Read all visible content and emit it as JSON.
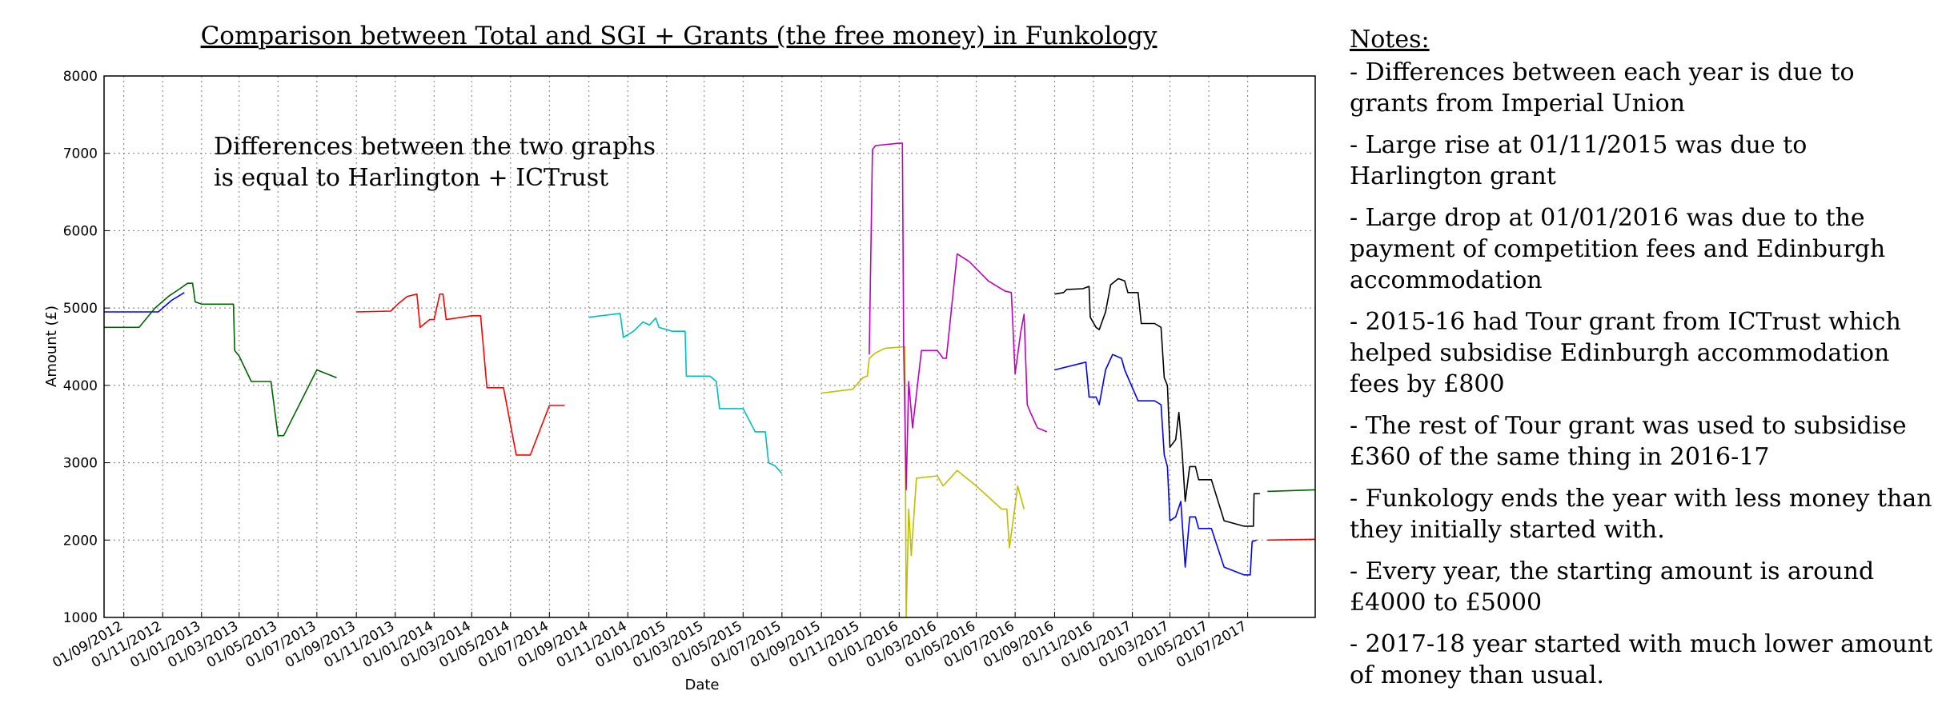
{
  "chart_data": {
    "type": "line",
    "title": "Comparison between Total and SGI + Grants (the free money) in Funkology",
    "xlabel": "Date",
    "ylabel": "Amount (£)",
    "xlim": [
      "2012-08-01",
      "2017-10-15"
    ],
    "ylim": [
      1000,
      8000
    ],
    "grid": true,
    "yticks": [
      "1000",
      "2000",
      "3000",
      "4000",
      "5000",
      "6000",
      "7000",
      "8000"
    ],
    "xticks": [
      "2012-09-01",
      "2012-11-01",
      "2013-01-01",
      "2013-03-01",
      "2013-05-01",
      "2013-07-01",
      "2013-09-01",
      "2013-11-01",
      "2014-01-01",
      "2014-03-01",
      "2014-05-01",
      "2014-07-01",
      "2014-09-01",
      "2014-11-01",
      "2015-01-01",
      "2015-03-01",
      "2015-05-01",
      "2015-07-01",
      "2015-09-01",
      "2015-11-01",
      "2016-01-01",
      "2016-03-01",
      "2016-05-01",
      "2016-07-01",
      "2016-09-01",
      "2016-11-01",
      "2017-01-01",
      "2017-03-01",
      "2017-05-01",
      "2017-07-01"
    ],
    "xtick_labels": [
      "01/09/2012",
      "01/11/2012",
      "01/01/2013",
      "01/03/2013",
      "01/05/2013",
      "01/07/2013",
      "01/09/2013",
      "01/11/2013",
      "01/01/2014",
      "01/03/2014",
      "01/05/2014",
      "01/07/2014",
      "01/09/2014",
      "01/11/2014",
      "01/01/2015",
      "01/03/2015",
      "01/05/2015",
      "01/07/2015",
      "01/09/2015",
      "01/11/2015",
      "01/01/2016",
      "01/03/2016",
      "01/05/2016",
      "01/07/2016",
      "01/09/2016",
      "01/11/2016",
      "01/01/2017",
      "01/03/2017",
      "01/05/2017",
      "01/07/2017"
    ],
    "annotation": [
      "Differences between the two graphs",
      "is equal to Harlington + ICTrust"
    ],
    "series": [
      {
        "color": "#0000ff",
        "points": [
          [
            "2012-08-01",
            4950
          ],
          [
            "2012-10-25",
            4950
          ],
          [
            "2012-11-15",
            5100
          ],
          [
            "2012-12-05",
            5200
          ]
        ]
      },
      {
        "color": "#006400",
        "points": [
          [
            "2012-08-01",
            4750
          ],
          [
            "2012-09-25",
            4750
          ],
          [
            "2012-10-20",
            5000
          ],
          [
            "2012-11-10",
            5150
          ],
          [
            "2012-11-28",
            5250
          ],
          [
            "2012-12-10",
            5320
          ],
          [
            "2012-12-18",
            5320
          ],
          [
            "2012-12-22",
            5080
          ],
          [
            "2013-01-01",
            5050
          ],
          [
            "2013-02-20",
            5050
          ],
          [
            "2013-02-22",
            4450
          ],
          [
            "2013-03-01",
            4380
          ],
          [
            "2013-03-20",
            4050
          ],
          [
            "2013-04-20",
            4050
          ],
          [
            "2013-05-01",
            3350
          ],
          [
            "2013-05-10",
            3350
          ],
          [
            "2013-07-01",
            4200
          ],
          [
            "2013-08-01",
            4100
          ]
        ]
      },
      {
        "color": "#ff0000",
        "points": [
          [
            "2013-09-01",
            4950
          ],
          [
            "2013-10-25",
            4960
          ],
          [
            "2013-11-05",
            5050
          ],
          [
            "2013-11-20",
            5150
          ],
          [
            "2013-12-05",
            5180
          ],
          [
            "2013-12-10",
            4750
          ],
          [
            "2013-12-25",
            4850
          ],
          [
            "2014-01-01",
            4850
          ],
          [
            "2014-01-10",
            5180
          ],
          [
            "2014-01-15",
            5180
          ],
          [
            "2014-01-20",
            4850
          ],
          [
            "2014-03-01",
            4900
          ],
          [
            "2014-03-15",
            4900
          ],
          [
            "2014-03-25",
            3970
          ],
          [
            "2014-04-20",
            3970
          ],
          [
            "2014-05-10",
            3100
          ],
          [
            "2014-06-01",
            3100
          ],
          [
            "2014-07-01",
            3740
          ],
          [
            "2014-07-25",
            3740
          ]
        ]
      },
      {
        "color": "#00bfbf",
        "points": [
          [
            "2014-09-01",
            4880
          ],
          [
            "2014-10-20",
            4930
          ],
          [
            "2014-10-25",
            4620
          ],
          [
            "2014-11-10",
            4700
          ],
          [
            "2014-11-25",
            4820
          ],
          [
            "2014-12-05",
            4780
          ],
          [
            "2014-12-15",
            4870
          ],
          [
            "2014-12-20",
            4750
          ],
          [
            "2015-01-10",
            4700
          ],
          [
            "2015-01-30",
            4700
          ],
          [
            "2015-02-01",
            4120
          ],
          [
            "2015-03-10",
            4120
          ],
          [
            "2015-03-20",
            4050
          ],
          [
            "2015-03-25",
            3700
          ],
          [
            "2015-05-01",
            3700
          ],
          [
            "2015-05-20",
            3400
          ],
          [
            "2015-06-05",
            3400
          ],
          [
            "2015-06-10",
            3000
          ],
          [
            "2015-06-20",
            2960
          ],
          [
            "2015-07-01",
            2860
          ]
        ]
      },
      {
        "color": "#bfbf00",
        "points": [
          [
            "2015-09-01",
            3900
          ],
          [
            "2015-10-20",
            3950
          ],
          [
            "2015-11-05",
            4100
          ],
          [
            "2015-11-12",
            4120
          ],
          [
            "2015-11-15",
            4350
          ],
          [
            "2015-11-25",
            4420
          ],
          [
            "2015-12-10",
            4480
          ],
          [
            "2016-01-10",
            4500
          ],
          [
            "2016-01-12",
            1000
          ],
          [
            "2016-01-16",
            2400
          ],
          [
            "2016-01-20",
            1800
          ],
          [
            "2016-01-28",
            2800
          ],
          [
            "2016-03-01",
            2830
          ],
          [
            "2016-03-10",
            2700
          ],
          [
            "2016-04-01",
            2900
          ],
          [
            "2016-05-01",
            2700
          ],
          [
            "2016-06-10",
            2400
          ],
          [
            "2016-06-18",
            2400
          ],
          [
            "2016-06-22",
            1900
          ],
          [
            "2016-07-05",
            2700
          ],
          [
            "2016-07-15",
            2400
          ]
        ]
      },
      {
        "color": "#bf00bf",
        "points": [
          [
            "2015-11-15",
            4400
          ],
          [
            "2015-11-20",
            7050
          ],
          [
            "2015-11-25",
            7100
          ],
          [
            "2016-01-01",
            7130
          ],
          [
            "2016-01-06",
            7130
          ],
          [
            "2016-01-08",
            4500
          ],
          [
            "2016-01-12",
            2650
          ],
          [
            "2016-01-16",
            4050
          ],
          [
            "2016-01-22",
            3450
          ],
          [
            "2016-02-05",
            4450
          ],
          [
            "2016-03-01",
            4450
          ],
          [
            "2016-03-10",
            4350
          ],
          [
            "2016-03-15",
            4350
          ],
          [
            "2016-04-01",
            5700
          ],
          [
            "2016-04-20",
            5600
          ],
          [
            "2016-05-20",
            5350
          ],
          [
            "2016-06-15",
            5220
          ],
          [
            "2016-06-25",
            5200
          ],
          [
            "2016-07-01",
            4150
          ],
          [
            "2016-07-10",
            4700
          ],
          [
            "2016-07-15",
            4920
          ],
          [
            "2016-07-20",
            3750
          ],
          [
            "2016-07-25",
            3650
          ],
          [
            "2016-08-05",
            3450
          ],
          [
            "2016-08-20",
            3400
          ]
        ]
      },
      {
        "color": "#000000",
        "points": [
          [
            "2016-09-01",
            5180
          ],
          [
            "2016-09-15",
            5200
          ],
          [
            "2016-09-20",
            5240
          ],
          [
            "2016-10-15",
            5250
          ],
          [
            "2016-10-25",
            5280
          ],
          [
            "2016-10-27",
            4880
          ],
          [
            "2016-11-05",
            4750
          ],
          [
            "2016-11-10",
            4720
          ],
          [
            "2016-11-20",
            4950
          ],
          [
            "2016-11-28",
            5300
          ],
          [
            "2016-12-10",
            5380
          ],
          [
            "2016-12-20",
            5350
          ],
          [
            "2016-12-25",
            5200
          ],
          [
            "2017-01-10",
            5200
          ],
          [
            "2017-01-15",
            4800
          ],
          [
            "2017-02-05",
            4800
          ],
          [
            "2017-02-15",
            4750
          ],
          [
            "2017-02-20",
            4100
          ],
          [
            "2017-02-25",
            4000
          ],
          [
            "2017-03-01",
            3200
          ],
          [
            "2017-03-10",
            3300
          ],
          [
            "2017-03-15",
            3650
          ],
          [
            "2017-03-20",
            3150
          ],
          [
            "2017-03-25",
            2500
          ],
          [
            "2017-04-01",
            2950
          ],
          [
            "2017-04-10",
            2950
          ],
          [
            "2017-04-15",
            2780
          ],
          [
            "2017-05-05",
            2780
          ],
          [
            "2017-05-25",
            2250
          ],
          [
            "2017-06-25",
            2180
          ],
          [
            "2017-07-10",
            2180
          ],
          [
            "2017-07-11",
            2600
          ],
          [
            "2017-07-20",
            2600
          ]
        ]
      },
      {
        "color": "#0000ff",
        "points": [
          [
            "2016-09-01",
            4200
          ],
          [
            "2016-10-20",
            4300
          ],
          [
            "2016-10-25",
            3850
          ],
          [
            "2016-11-05",
            3850
          ],
          [
            "2016-11-10",
            3750
          ],
          [
            "2016-11-20",
            4200
          ],
          [
            "2016-12-01",
            4400
          ],
          [
            "2016-12-15",
            4350
          ],
          [
            "2016-12-20",
            4200
          ],
          [
            "2017-01-10",
            3800
          ],
          [
            "2017-02-05",
            3800
          ],
          [
            "2017-02-15",
            3750
          ],
          [
            "2017-02-20",
            3100
          ],
          [
            "2017-02-25",
            2950
          ],
          [
            "2017-03-01",
            2250
          ],
          [
            "2017-03-10",
            2300
          ],
          [
            "2017-03-18",
            2500
          ],
          [
            "2017-03-25",
            1650
          ],
          [
            "2017-04-01",
            2300
          ],
          [
            "2017-04-10",
            2300
          ],
          [
            "2017-04-15",
            2150
          ],
          [
            "2017-05-05",
            2150
          ],
          [
            "2017-05-25",
            1650
          ],
          [
            "2017-06-25",
            1550
          ],
          [
            "2017-07-05",
            1550
          ],
          [
            "2017-07-08",
            1980
          ],
          [
            "2017-07-15",
            2000
          ]
        ]
      },
      {
        "color": "#ff0000",
        "points": [
          [
            "2017-08-01",
            2000
          ],
          [
            "2017-10-15",
            2010
          ]
        ]
      },
      {
        "color": "#006400",
        "points": [
          [
            "2017-08-01",
            2630
          ],
          [
            "2017-10-15",
            2650
          ]
        ]
      }
    ]
  },
  "notes": {
    "heading": "Notes:",
    "items": [
      "- Differences between each year is due to grants from Imperial Union",
      "- Large rise at 01/11/2015 was due to Harlington grant",
      "- Large drop at 01/01/2016 was due to the payment of competition fees and Edinburgh accommodation",
      "- 2015-16 had Tour grant from ICTrust which helped subsidise Edinburgh accommodation fees by £800",
      "- The rest of Tour grant was used to subsidise £360 of the same thing in 2016-17",
      "- Funkology ends the year with less money than they initially started with.",
      "- Every year, the starting amount is around £4000 to £5000",
      "- 2017-18 year started with much lower amount of money than usual."
    ]
  }
}
